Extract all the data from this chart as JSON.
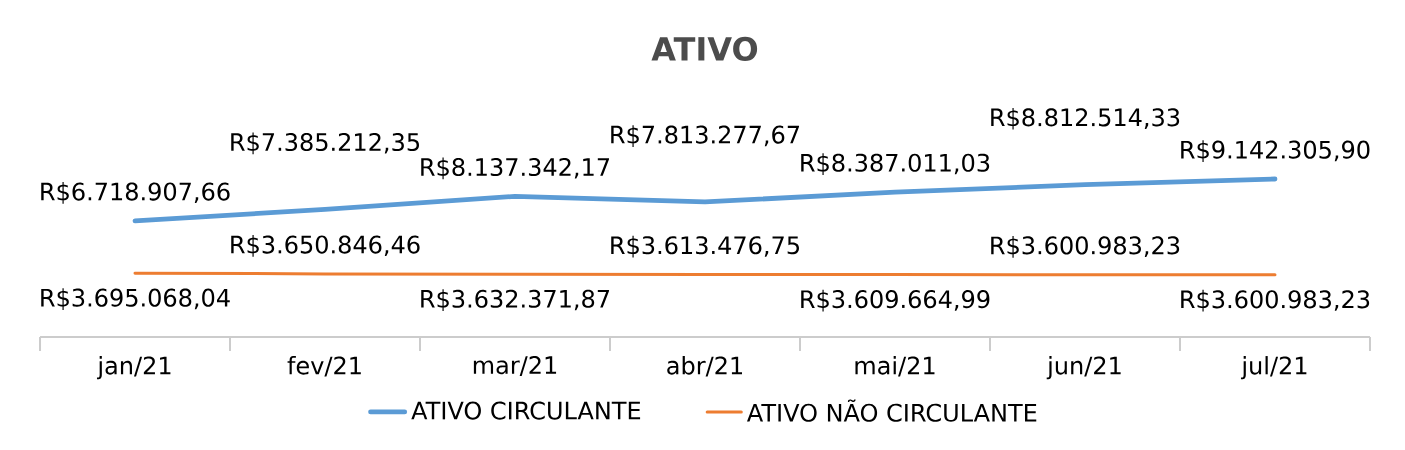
{
  "chart_data": {
    "type": "line",
    "title": "ATIVO",
    "categories": [
      "jan/21",
      "fev/21",
      "mar/21",
      "abr/21",
      "mai/21",
      "jun/21",
      "jul/21"
    ],
    "series": [
      {
        "name": "ATIVO CIRCULANTE",
        "color": "#5b9bd5",
        "values": [
          6718907.66,
          7385212.35,
          8137342.17,
          7813277.67,
          8387011.03,
          8812514.33,
          9142305.9
        ],
        "value_labels": [
          "R$6.718.907,66",
          "R$7.385.212,35",
          "R$8.137.342,17",
          "R$7.813.277,67",
          "R$8.387.011,03",
          "R$8.812.514,33",
          "R$9.142.305,90"
        ]
      },
      {
        "name": "ATIVO NÃO CIRCULANTE",
        "color": "#ed7d31",
        "values": [
          3695068.04,
          3650846.46,
          3632371.87,
          3613476.75,
          3609664.99,
          3600983.23,
          3600983.23
        ],
        "value_labels": [
          "R$3.695.068,04",
          "R$3.650.846,46",
          "R$3.632.371,87",
          "R$3.613.476,75",
          "R$3.609.664,99",
          "R$3.600.983,23",
          "R$3.600.983,23"
        ]
      }
    ],
    "legend": "bottom",
    "marker": "none"
  }
}
